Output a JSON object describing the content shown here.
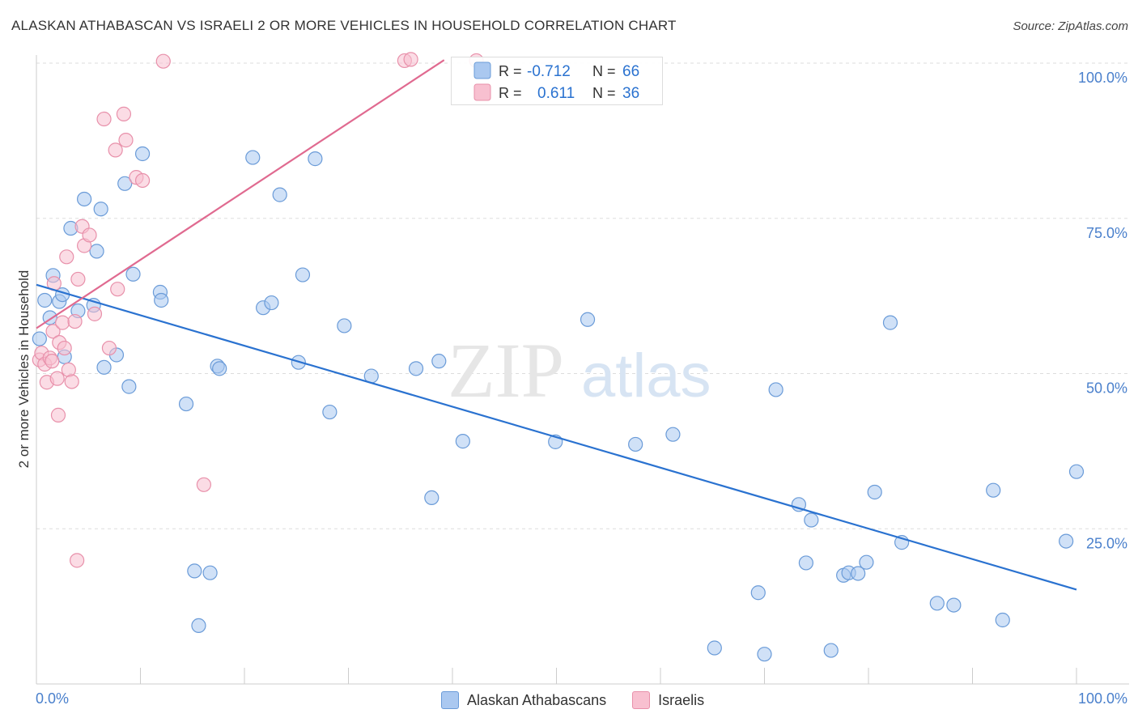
{
  "title": "ALASKAN ATHABASCAN VS ISRAELI 2 OR MORE VEHICLES IN HOUSEHOLD CORRELATION CHART",
  "source": "Source: ZipAtlas.com",
  "watermark": {
    "zip": "ZIP",
    "atlas": "atlas"
  },
  "colors": {
    "blue_fill": "#aac8f0",
    "blue_stroke": "#6a9bd8",
    "blue_line": "#2a72d0",
    "pink_fill": "#f8c0d0",
    "pink_stroke": "#e890aa",
    "pink_line": "#e06a90",
    "axis_text": "#4a80cc",
    "grid": "#dddddd"
  },
  "legend": {
    "row1": {
      "r_label": "R = ",
      "r_value": "-0.712",
      "n_label": "N = ",
      "n_value": "66"
    },
    "row2": {
      "r_label": "R = ",
      "r_value": "0.611",
      "n_label": "N = ",
      "n_value": "36"
    }
  },
  "chart_data": {
    "type": "scatter",
    "title": "ALASKAN ATHABASCAN VS ISRAELI 2 OR MORE VEHICLES IN HOUSEHOLD CORRELATION CHART",
    "xlabel": "",
    "ylabel": "2 or more Vehicles in Household",
    "xlim": [
      0,
      100
    ],
    "ylim": [
      0,
      100
    ],
    "x_tick_labels": [
      "0.0%",
      "100.0%"
    ],
    "y_tick_labels": [
      "25.0%",
      "50.0%",
      "75.0%",
      "100.0%"
    ],
    "y_ticks": [
      25,
      50,
      75,
      100
    ],
    "grid": true,
    "legend_placement": "bottom",
    "series": [
      {
        "name": "Alaskan Athabascans",
        "trend": {
          "x": [
            0,
            100
          ],
          "y": [
            64.3,
            15.2
          ]
        },
        "points": [
          [
            0.3,
            55.6
          ],
          [
            0.8,
            61.8
          ],
          [
            1.3,
            59.0
          ],
          [
            1.6,
            65.8
          ],
          [
            2.2,
            61.6
          ],
          [
            2.5,
            62.7
          ],
          [
            2.7,
            52.7
          ],
          [
            3.3,
            73.4
          ],
          [
            4.0,
            60.1
          ],
          [
            4.6,
            78.1
          ],
          [
            5.5,
            61.0
          ],
          [
            5.8,
            69.7
          ],
          [
            6.2,
            76.5
          ],
          [
            6.5,
            51.0
          ],
          [
            7.7,
            53.0
          ],
          [
            8.5,
            80.6
          ],
          [
            8.9,
            47.9
          ],
          [
            9.3,
            66.0
          ],
          [
            10.2,
            85.4
          ],
          [
            11.9,
            63.1
          ],
          [
            12.0,
            61.8
          ],
          [
            14.4,
            45.1
          ],
          [
            15.2,
            18.2
          ],
          [
            15.6,
            9.4
          ],
          [
            16.7,
            17.9
          ],
          [
            17.4,
            51.2
          ],
          [
            17.6,
            50.8
          ],
          [
            20.8,
            84.8
          ],
          [
            21.8,
            60.6
          ],
          [
            22.6,
            61.4
          ],
          [
            23.4,
            78.8
          ],
          [
            25.2,
            51.8
          ],
          [
            25.6,
            65.9
          ],
          [
            26.8,
            84.6
          ],
          [
            28.2,
            43.8
          ],
          [
            29.6,
            57.7
          ],
          [
            32.2,
            49.6
          ],
          [
            36.5,
            50.8
          ],
          [
            38.0,
            30.0
          ],
          [
            38.7,
            52.0
          ],
          [
            41.0,
            39.1
          ],
          [
            49.9,
            39.0
          ],
          [
            53.0,
            58.7
          ],
          [
            57.6,
            38.6
          ],
          [
            61.2,
            40.2
          ],
          [
            65.2,
            5.8
          ],
          [
            69.4,
            14.7
          ],
          [
            70.0,
            4.8
          ],
          [
            71.1,
            47.4
          ],
          [
            73.3,
            28.9
          ],
          [
            74.0,
            19.5
          ],
          [
            74.5,
            26.4
          ],
          [
            76.4,
            5.4
          ],
          [
            77.6,
            17.5
          ],
          [
            78.1,
            17.9
          ],
          [
            79.0,
            17.8
          ],
          [
            79.8,
            19.6
          ],
          [
            80.6,
            30.9
          ],
          [
            82.1,
            58.2
          ],
          [
            83.2,
            22.8
          ],
          [
            86.6,
            13.0
          ],
          [
            88.2,
            12.7
          ],
          [
            92.0,
            31.2
          ],
          [
            92.9,
            10.3
          ],
          [
            99.0,
            23.0
          ],
          [
            100.0,
            34.2
          ]
        ]
      },
      {
        "name": "Israelis",
        "trend": {
          "x": [
            0,
            39.2
          ],
          "y": [
            57.3,
            100.5
          ]
        },
        "points": [
          [
            0.3,
            52.2
          ],
          [
            0.5,
            53.3
          ],
          [
            0.8,
            51.5
          ],
          [
            1.0,
            48.6
          ],
          [
            1.3,
            52.5
          ],
          [
            1.5,
            52.0
          ],
          [
            1.6,
            56.8
          ],
          [
            1.7,
            64.5
          ],
          [
            2.0,
            49.2
          ],
          [
            2.1,
            43.3
          ],
          [
            2.2,
            55.0
          ],
          [
            2.5,
            58.2
          ],
          [
            2.7,
            54.1
          ],
          [
            2.9,
            68.8
          ],
          [
            3.1,
            50.6
          ],
          [
            3.4,
            48.7
          ],
          [
            3.7,
            58.4
          ],
          [
            3.9,
            19.9
          ],
          [
            4.0,
            65.2
          ],
          [
            4.4,
            73.7
          ],
          [
            4.6,
            70.6
          ],
          [
            5.1,
            72.3
          ],
          [
            5.6,
            59.6
          ],
          [
            6.5,
            91.0
          ],
          [
            7.0,
            54.1
          ],
          [
            7.6,
            86.0
          ],
          [
            7.8,
            63.6
          ],
          [
            8.4,
            91.8
          ],
          [
            8.6,
            87.6
          ],
          [
            9.6,
            81.6
          ],
          [
            10.2,
            81.1
          ],
          [
            12.2,
            100.3
          ],
          [
            16.1,
            32.1
          ],
          [
            35.4,
            100.4
          ],
          [
            36.0,
            100.6
          ],
          [
            42.3,
            100.4
          ]
        ]
      }
    ]
  }
}
